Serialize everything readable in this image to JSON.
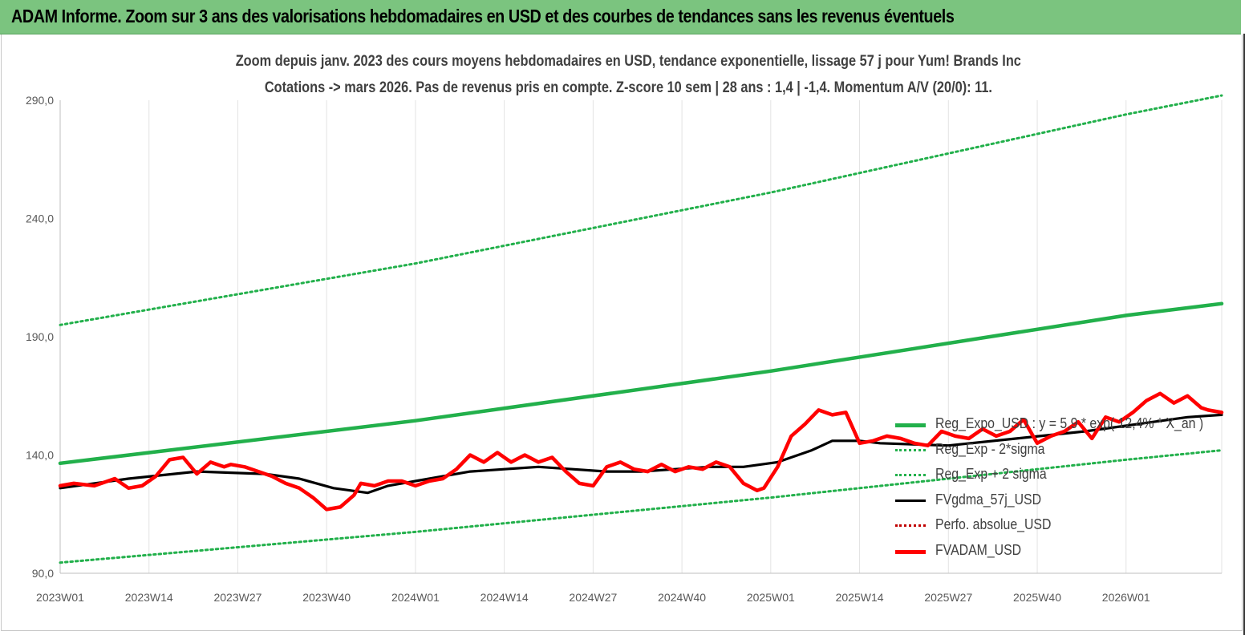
{
  "banner": {
    "title": "ADAM Informe. Zoom sur 3 ans des valorisations hebdomadaires en USD et des courbes de tendances sans les revenus éventuels"
  },
  "colors": {
    "banner_bg": "#7bc47f",
    "green": "#22b04b",
    "green_dotted": "#22b04b",
    "black": "#000000",
    "red": "#ff0000",
    "red_dotted": "#c00000"
  },
  "chart_data": {
    "type": "line",
    "title": "Zoom depuis janv. 2023 des cours moyens hebdomadaires en USD, tendance exponentielle, lissage 57 j pour Yum! Brands Inc",
    "subtitle": "Cotations -> mars 2026. Pas de revenus pris en compte. Z-score 10 sem | 28 ans : 1,4 | -1,4. Momentum A/V (20/0): 11.",
    "xlabel": "",
    "ylabel": "",
    "ylim": [
      90,
      290
    ],
    "yticks": [
      "290,0",
      "240,0",
      "190,0",
      "140,0",
      "90,0"
    ],
    "yticks_values": [
      290,
      240,
      190,
      140,
      90
    ],
    "xticks": [
      "2023W01",
      "2023W14",
      "2023W27",
      "2023W40",
      "2024W01",
      "2024W14",
      "2024W27",
      "2024W40",
      "2025W01",
      "2025W14",
      "2025W27",
      "2025W40",
      "2026W01"
    ],
    "week_count": 171,
    "legend_position": "right",
    "series": [
      {
        "name": "Reg_Expo_USD : y = 5,9 * exp( 12,4% * X_an )",
        "style": "solid-thick",
        "color": "#22b04b",
        "x": [
          0,
          52,
          104,
          156,
          170
        ],
        "values": [
          136.5,
          154.5,
          175.5,
          199,
          204
        ]
      },
      {
        "name": "Reg_Exp - 2*sigma",
        "style": "dotted",
        "color": "#22b04b",
        "x": [
          0,
          52,
          104,
          156,
          170
        ],
        "values": [
          94.5,
          107.5,
          122,
          138,
          142
        ]
      },
      {
        "name": "Reg_Exp + 2 sigma",
        "style": "dotted",
        "color": "#22b04b",
        "x": [
          0,
          52,
          104,
          156,
          170
        ],
        "values": [
          195,
          221,
          251,
          284,
          292
        ]
      },
      {
        "name": "FVgdma_57j_USD",
        "style": "solid",
        "color": "#000000",
        "x": [
          0,
          10,
          20,
          25,
          30,
          35,
          40,
          45,
          48,
          52,
          60,
          70,
          75,
          80,
          85,
          90,
          95,
          100,
          105,
          110,
          113,
          117,
          120,
          130,
          140,
          150,
          160,
          165,
          170
        ],
        "values": [
          126,
          130,
          133,
          132.5,
          132,
          130,
          126,
          124,
          127,
          129,
          133,
          135,
          134,
          133,
          133,
          134,
          135,
          135,
          137,
          142,
          146,
          146,
          145,
          144,
          147,
          150,
          154,
          156,
          157
        ]
      },
      {
        "name": "Perfo. absolue_USD",
        "style": "dotted",
        "color": "#c00000",
        "x": [],
        "values": []
      },
      {
        "name": "FVADAM_USD",
        "style": "solid-thick",
        "color": "#ff0000",
        "x": [
          0,
          2,
          5,
          8,
          10,
          12,
          14,
          16,
          18,
          20,
          22,
          24,
          25,
          27,
          29,
          31,
          33,
          35,
          37,
          39,
          41,
          43,
          44,
          46,
          48,
          50,
          52,
          54,
          56,
          58,
          60,
          62,
          64,
          66,
          68,
          70,
          72,
          74,
          76,
          78,
          80,
          82,
          84,
          86,
          88,
          90,
          92,
          94,
          96,
          98,
          100,
          102,
          103,
          105,
          107,
          109,
          111,
          113,
          115,
          117,
          119,
          121,
          123,
          125,
          127,
          129,
          131,
          133,
          135,
          137,
          139,
          141,
          143,
          145,
          147,
          149,
          151,
          153,
          155,
          157,
          159,
          161,
          163,
          165,
          167,
          168,
          170
        ],
        "values": [
          127,
          128,
          127,
          130,
          126,
          127,
          131,
          138,
          139,
          132,
          137,
          135,
          136,
          135,
          133,
          131,
          128,
          126,
          122,
          117,
          118,
          123,
          128,
          127,
          129,
          129,
          127,
          129,
          130,
          134,
          140,
          137,
          141,
          137,
          140,
          137,
          139,
          133,
          128,
          127,
          135,
          137,
          134,
          133,
          136,
          133,
          135,
          134,
          137,
          135,
          128,
          125,
          126,
          135,
          148,
          153,
          159,
          157,
          158,
          145,
          146,
          148,
          147,
          145,
          144,
          150,
          148,
          147,
          151,
          148,
          150,
          155,
          145,
          148,
          150,
          154,
          147,
          156,
          154,
          158,
          163,
          166,
          162,
          165,
          160,
          159,
          158
        ]
      }
    ]
  }
}
